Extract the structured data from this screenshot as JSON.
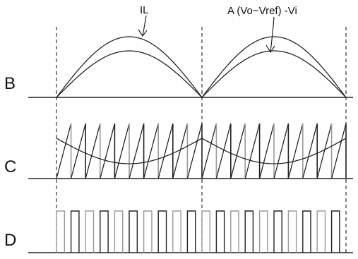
{
  "rows": {
    "b": "B",
    "c": "C",
    "d": "D"
  },
  "annotations": {
    "il": "IL",
    "ref": "A (Vo−Vref) -Vi"
  }
}
